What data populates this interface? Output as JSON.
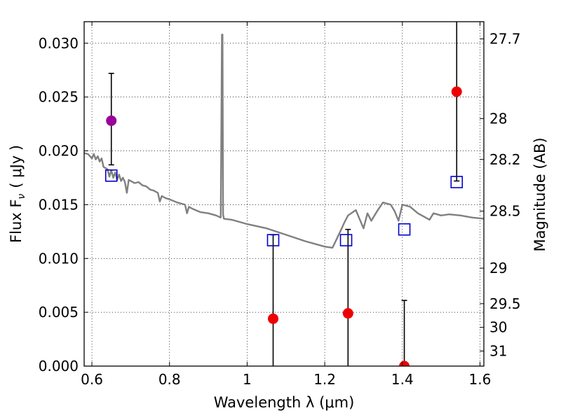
{
  "chart_data": {
    "type": "scatter",
    "xlabel": "Wavelength  λ (μm)",
    "ylabel_left": "Flux  F",
    "ylabel_left_sub": "ν",
    "ylabel_left_unit": "( μJy )",
    "ylabel_right": "Magnitude (AB)",
    "xlim": [
      0.58,
      1.61
    ],
    "ylim": [
      0.0,
      0.032
    ],
    "grid": true,
    "x_ticks": [
      0.6,
      0.8,
      1.0,
      1.2,
      1.4,
      1.6
    ],
    "x_tick_labels": [
      "0.6",
      "0.8",
      "1",
      "1.2",
      "1.4",
      "1.6"
    ],
    "y_ticks": [
      0.0,
      0.005,
      0.01,
      0.015,
      0.02,
      0.025,
      0.03
    ],
    "y_tick_labels": [
      "0.000",
      "0.005",
      "0.010",
      "0.015",
      "0.020",
      "0.025",
      "0.030"
    ],
    "right_ticks": [
      {
        "label": "27.7",
        "flux": 0.0304
      },
      {
        "label": "28",
        "flux": 0.023
      },
      {
        "label": "28.2",
        "flux": 0.0192
      },
      {
        "label": "28.5",
        "flux": 0.0144
      },
      {
        "label": "29",
        "flux": 0.0091
      },
      {
        "label": "29.5",
        "flux": 0.0058
      },
      {
        "label": "30",
        "flux": 0.0036
      },
      {
        "label": "31",
        "flux": 0.0014
      }
    ],
    "model_spectrum": {
      "color": "#808080",
      "x": [
        0.58,
        0.59,
        0.6,
        0.605,
        0.61,
        0.615,
        0.62,
        0.625,
        0.63,
        0.64,
        0.645,
        0.65,
        0.655,
        0.66,
        0.665,
        0.67,
        0.675,
        0.68,
        0.685,
        0.69,
        0.695,
        0.7,
        0.71,
        0.72,
        0.73,
        0.74,
        0.75,
        0.76,
        0.77,
        0.775,
        0.78,
        0.79,
        0.8,
        0.82,
        0.84,
        0.845,
        0.85,
        0.86,
        0.88,
        0.9,
        0.92,
        0.932,
        0.935,
        0.9365,
        0.938,
        0.94,
        0.96,
        0.98,
        1.0,
        1.05,
        1.1,
        1.15,
        1.2,
        1.22,
        1.24,
        1.25,
        1.26,
        1.28,
        1.3,
        1.31,
        1.32,
        1.335,
        1.35,
        1.37,
        1.38,
        1.39,
        1.4,
        1.42,
        1.44,
        1.46,
        1.47,
        1.48,
        1.5,
        1.52,
        1.55,
        1.58,
        1.61
      ],
      "y": [
        0.0198,
        0.0197,
        0.0193,
        0.0197,
        0.0192,
        0.0195,
        0.019,
        0.0193,
        0.0185,
        0.0183,
        0.0176,
        0.0182,
        0.0175,
        0.018,
        0.0173,
        0.0178,
        0.0172,
        0.0175,
        0.0171,
        0.0161,
        0.0173,
        0.0172,
        0.017,
        0.0171,
        0.0168,
        0.0167,
        0.0164,
        0.0163,
        0.0161,
        0.0153,
        0.0158,
        0.0156,
        0.0155,
        0.0152,
        0.015,
        0.0142,
        0.0148,
        0.0146,
        0.0143,
        0.0142,
        0.014,
        0.0138,
        0.0308,
        0.0308,
        0.0141,
        0.0137,
        0.0136,
        0.0134,
        0.0132,
        0.0128,
        0.0122,
        0.0116,
        0.0111,
        0.011,
        0.0125,
        0.0133,
        0.014,
        0.0145,
        0.0128,
        0.0142,
        0.0135,
        0.0144,
        0.0152,
        0.015,
        0.0144,
        0.0135,
        0.015,
        0.0148,
        0.0142,
        0.0138,
        0.0136,
        0.0142,
        0.014,
        0.0141,
        0.014,
        0.0138,
        0.0137
      ]
    },
    "model_points": {
      "color": "#0000cc",
      "x": [
        0.65,
        1.067,
        1.255,
        1.405,
        1.54
      ],
      "y": [
        0.0177,
        0.0117,
        0.0117,
        0.0127,
        0.0171
      ]
    },
    "measurements": [
      {
        "x": 0.65,
        "y": 0.0228,
        "err_low": 0.0187,
        "err_high": 0.0272,
        "color": "#9b009b"
      },
      {
        "x": 1.067,
        "y": 0.0044,
        "err_low": 0.0,
        "err_high": 0.0122,
        "color": "#ee0000"
      },
      {
        "x": 1.26,
        "y": 0.0049,
        "err_low": 0.0,
        "err_high": 0.0127,
        "color": "#ee0000"
      },
      {
        "x": 1.405,
        "y": 0.0,
        "err_low": 0.0,
        "err_high": 0.0061,
        "color": "#ee0000"
      },
      {
        "x": 1.54,
        "y": 0.0255,
        "err_low": 0.0172,
        "err_high": 0.032,
        "color": "#ee0000"
      }
    ]
  }
}
